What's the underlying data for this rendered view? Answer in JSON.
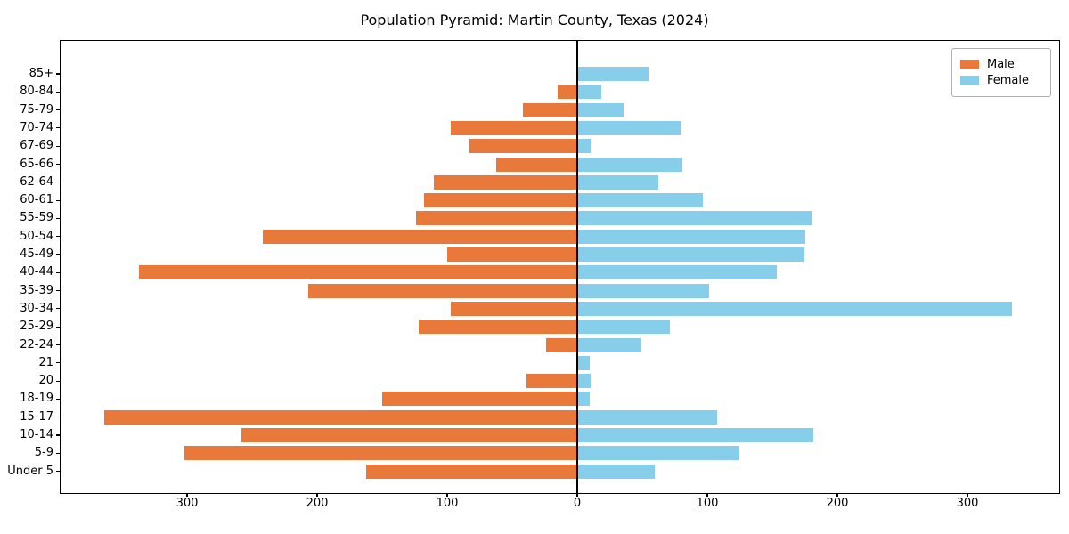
{
  "title": "Population Pyramid: Martin County, Texas (2024)",
  "legend": {
    "male_label": "Male",
    "female_label": "Female"
  },
  "colors": {
    "male": "#e8793b",
    "female": "#87ceeb",
    "axis": "#000000",
    "legend_border": "#b0b0b0"
  },
  "chart_data": {
    "type": "bar",
    "subtype": "population-pyramid",
    "orientation": "horizontal",
    "title": "Population Pyramid: Martin County, Texas (2024)",
    "categories": [
      "85+",
      "80-84",
      "75-79",
      "70-74",
      "67-69",
      "65-66",
      "62-64",
      "60-61",
      "55-59",
      "50-54",
      "45-49",
      "40-44",
      "35-39",
      "30-34",
      "25-29",
      "22-24",
      "21",
      "20",
      "18-19",
      "15-17",
      "10-14",
      "5-9",
      "Under 5"
    ],
    "series": [
      {
        "name": "Male",
        "side": "left",
        "color": "#e8793b",
        "values": [
          0,
          15,
          42,
          97,
          83,
          62,
          110,
          118,
          124,
          242,
          100,
          337,
          207,
          97,
          122,
          24,
          0,
          39,
          150,
          364,
          258,
          302,
          162
        ]
      },
      {
        "name": "Female",
        "side": "right",
        "color": "#87ceeb",
        "values": [
          54,
          18,
          35,
          79,
          10,
          80,
          62,
          96,
          180,
          175,
          174,
          153,
          101,
          334,
          71,
          48,
          9,
          10,
          9,
          107,
          181,
          124,
          59
        ]
      }
    ],
    "x_tick_values": [
      -300,
      -200,
      -100,
      0,
      100,
      200,
      300
    ],
    "x_tick_labels": [
      "300",
      "200",
      "100",
      "0",
      "100",
      "200",
      "300"
    ],
    "xlim": [
      -397,
      371
    ],
    "grid": false,
    "legend_position": "upper right"
  }
}
